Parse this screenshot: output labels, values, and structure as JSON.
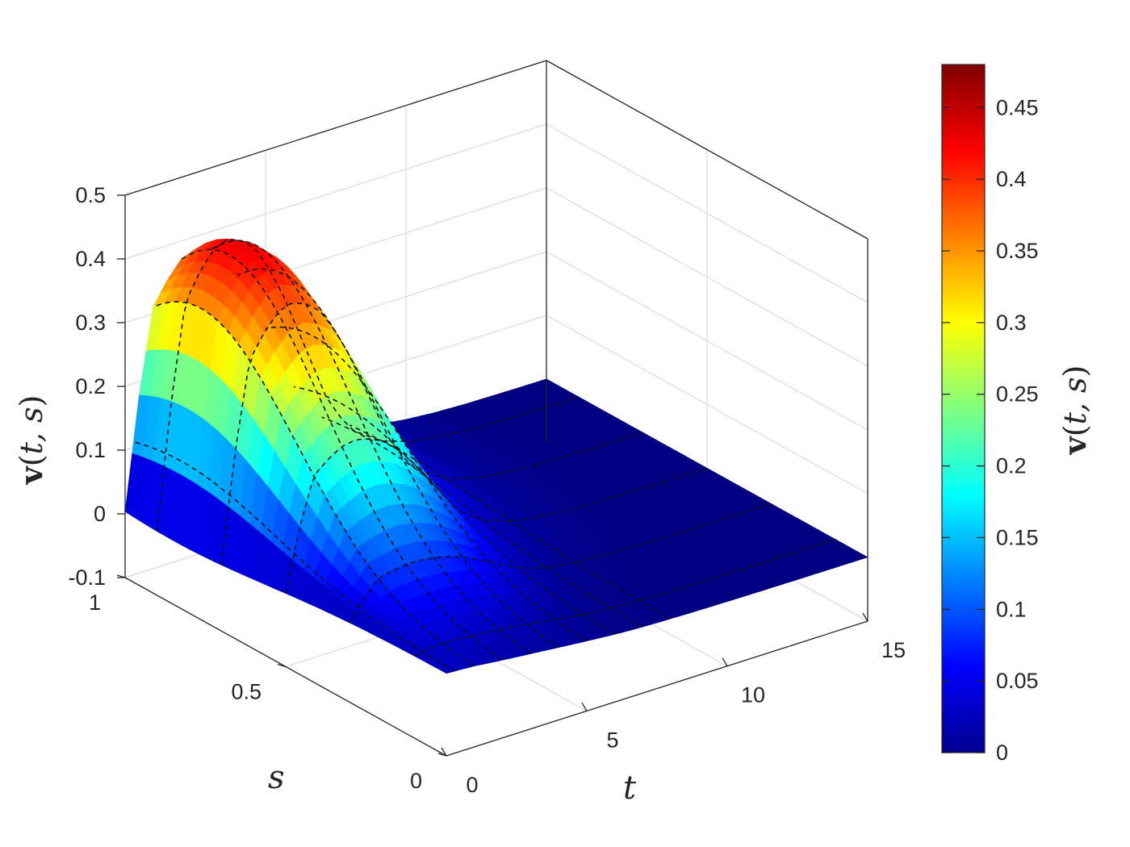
{
  "chart_data": {
    "type": "surface",
    "title": "",
    "xlabel": "t",
    "ylabel": "s",
    "zlabel": {
      "func": "v",
      "args": "t, s"
    },
    "x_range": [
      0,
      15
    ],
    "y_range": [
      0,
      1
    ],
    "z_range": [
      -0.1,
      0.5
    ],
    "x_ticks": [
      "0",
      "5",
      "10",
      "15"
    ],
    "y_ticks": [
      "0",
      "0.5",
      "1"
    ],
    "z_ticks": [
      "-0.1",
      "0",
      "0.1",
      "0.2",
      "0.3",
      "0.4",
      "0.5"
    ],
    "grid": true,
    "colormap": "jet",
    "colorbar": {
      "label": {
        "func": "v",
        "args": "t, s"
      },
      "range": [
        0,
        0.48
      ],
      "ticks": [
        "0",
        "0.05",
        "0.1",
        "0.15",
        "0.2",
        "0.25",
        "0.3",
        "0.35",
        "0.4",
        "0.45"
      ]
    },
    "surface": {
      "t": [
        0,
        0.5,
        1,
        1.5,
        2,
        2.5,
        3,
        3.5,
        4,
        4.5,
        5,
        5.5,
        6,
        6.5,
        7,
        8,
        9,
        10,
        11,
        12,
        13,
        14,
        15
      ],
      "s": [
        0,
        0.1,
        0.2,
        0.3,
        0.4,
        0.5,
        0.6,
        0.7,
        0.8,
        0.9,
        1.0
      ],
      "v_peak": [
        0,
        0.2,
        0.35,
        0.39,
        0.42,
        0.43,
        0.42,
        0.4,
        0.36,
        0.31,
        0.25,
        0.19,
        0.13,
        0.09,
        0.06,
        0.03,
        0.015,
        0.008,
        0.004,
        0.002,
        0.001,
        0.0005,
        0.0002
      ],
      "v_min_at_s0": 0.03,
      "s_peak": 0.85
    },
    "contour_levels_t": [
      0.3,
      1,
      2,
      3,
      4,
      5,
      6,
      7,
      8
    ]
  }
}
